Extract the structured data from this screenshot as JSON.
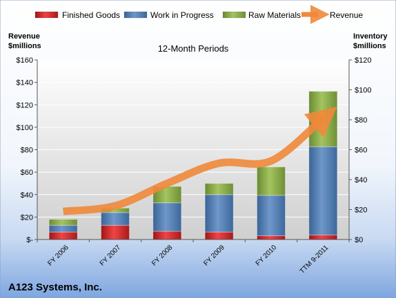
{
  "chart_data": {
    "type": "bar",
    "subtype": "stacked bar with line overlay (dual axis)",
    "title": "12-Month Periods",
    "footer": "A123 Systems, Inc.",
    "categories": [
      "FY 2006",
      "FY 2007",
      "FY 2008",
      "FY 2009",
      "FY 2010",
      "TTM 9-2011"
    ],
    "legend": {
      "placement": "top",
      "entries": [
        "Finished Goods",
        "Work in Progress",
        "Raw Materials",
        "Revenue"
      ]
    },
    "y_left": {
      "label_line1": "Revenue",
      "label_line2": "$millions",
      "ylim": [
        0,
        160
      ],
      "ticks": [
        0,
        20,
        40,
        60,
        80,
        100,
        120,
        140,
        160
      ],
      "tick_labels": [
        "$-",
        "$20",
        "$40",
        "$60",
        "$80",
        "$100",
        "$120",
        "$140",
        "$160"
      ]
    },
    "y_right": {
      "label_line1": "Inventory",
      "label_line2": "$millions",
      "ylim": [
        0,
        120
      ],
      "ticks": [
        0,
        20,
        40,
        60,
        80,
        100,
        120
      ],
      "tick_labels": [
        "$0",
        "$20",
        "$40",
        "$60",
        "$80",
        "$100",
        "$120"
      ]
    },
    "bar_series": [
      {
        "name": "Finished Goods",
        "axis": "right",
        "color": "#e0282a",
        "values": [
          5,
          9.5,
          5.5,
          5,
          2.5,
          3
        ]
      },
      {
        "name": "Work in Progress",
        "axis": "right",
        "color": "#4f81bd",
        "values": [
          4.5,
          8.5,
          19,
          25,
          27,
          59
        ]
      },
      {
        "name": "Raw Materials",
        "axis": "right",
        "color": "#8db04a",
        "values": [
          4,
          3,
          11,
          7.5,
          19,
          37
        ]
      }
    ],
    "line_series": {
      "name": "Revenue",
      "axis": "left",
      "color": "#f0883a",
      "values": [
        25,
        30,
        50,
        68,
        70,
        108
      ]
    },
    "grid": true
  }
}
